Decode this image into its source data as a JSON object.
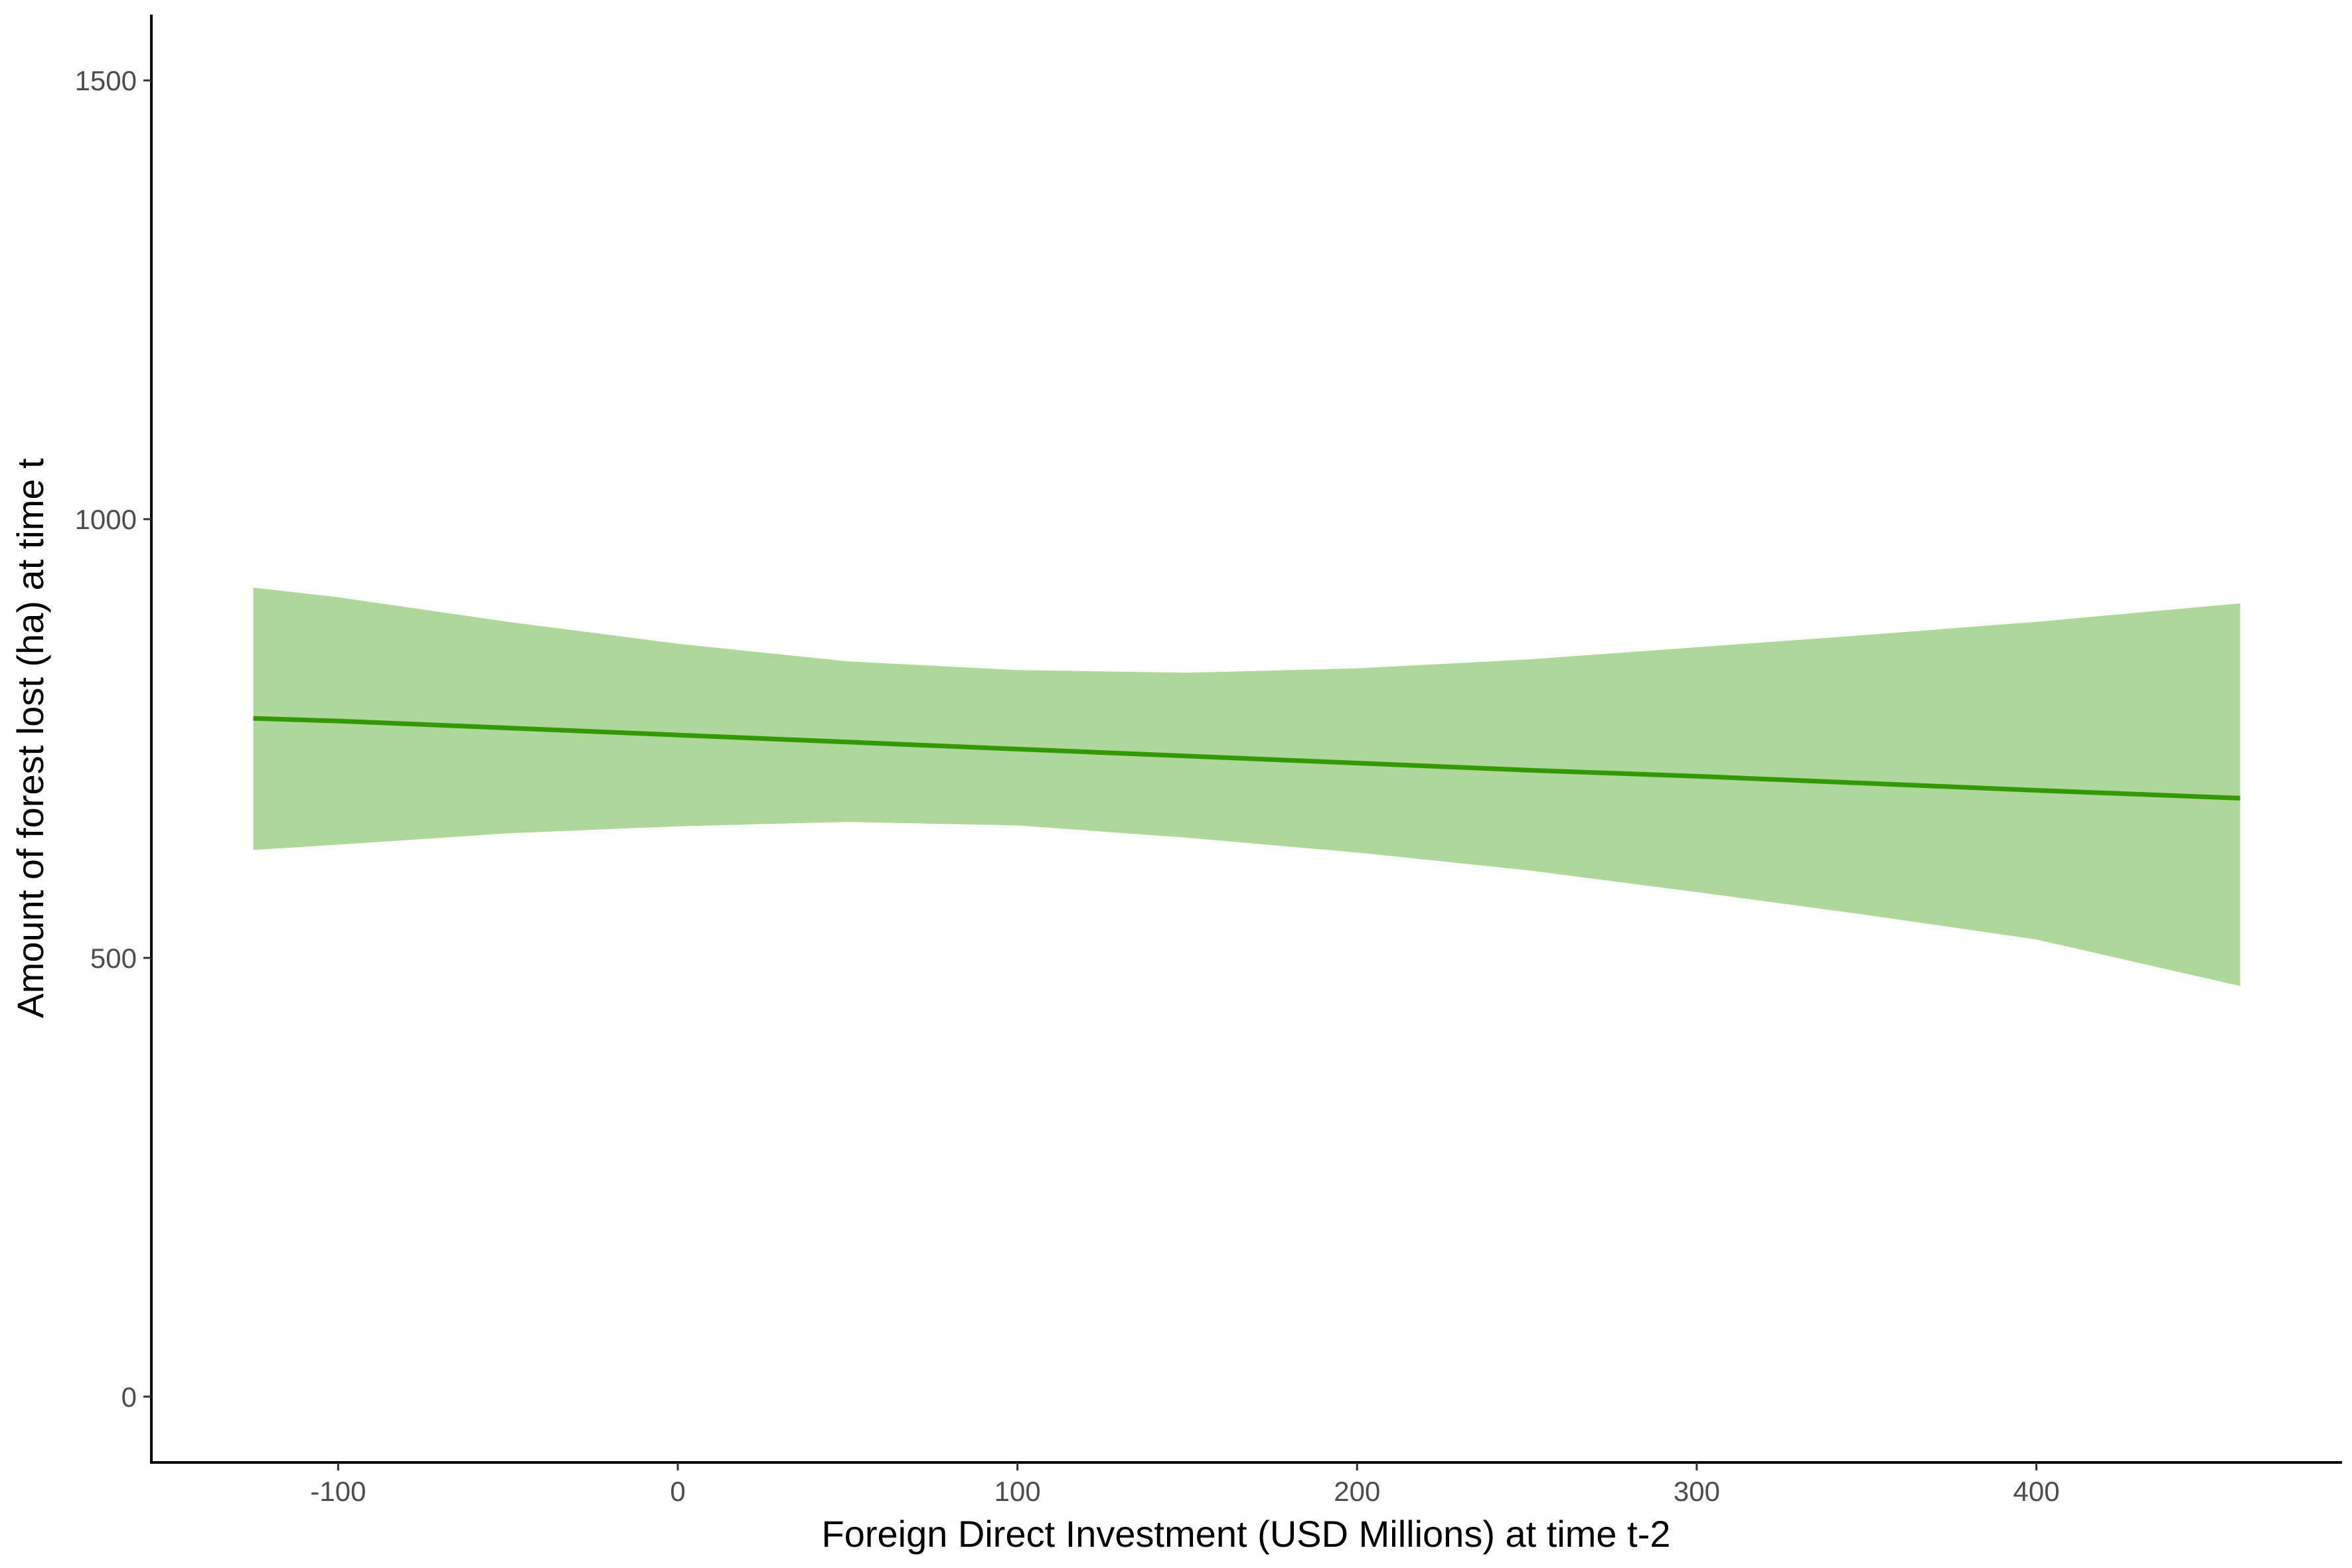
{
  "chart_data": {
    "type": "line",
    "title": "",
    "xlabel": "Foreign Direct Investment (USD Millions) at time t-2",
    "ylabel": "Amount of forest lost (ha) at time t",
    "xlim": [
      -155,
      490
    ],
    "ylim": [
      -75,
      1575
    ],
    "x_ticks": [
      -100,
      0,
      100,
      200,
      300,
      400
    ],
    "y_ticks": [
      0,
      500,
      1000,
      1500
    ],
    "x_tick_labels": [
      "-100",
      "0",
      "100",
      "200",
      "300",
      "400"
    ],
    "y_tick_labels": [
      "0",
      "500",
      "1000",
      "1500"
    ],
    "grid": false,
    "legend": "none",
    "series": [
      {
        "x": [
          -125,
          -100,
          -50,
          0,
          50,
          100,
          150,
          200,
          250,
          300,
          350,
          400,
          460
        ],
        "y": [
          773,
          770,
          762,
          754,
          746,
          738,
          730,
          722,
          714,
          707,
          699,
          691,
          682
        ],
        "ci_lower": [
          623,
          629,
          642,
          650,
          655,
          651,
          637,
          620,
          600,
          575,
          549,
          521,
          468
        ],
        "ci_upper": [
          922,
          911,
          883,
          858,
          838,
          828,
          825,
          830,
          840,
          854,
          868,
          883,
          904
        ],
        "line_color": "#339900",
        "band_color": "#add899"
      }
    ]
  }
}
